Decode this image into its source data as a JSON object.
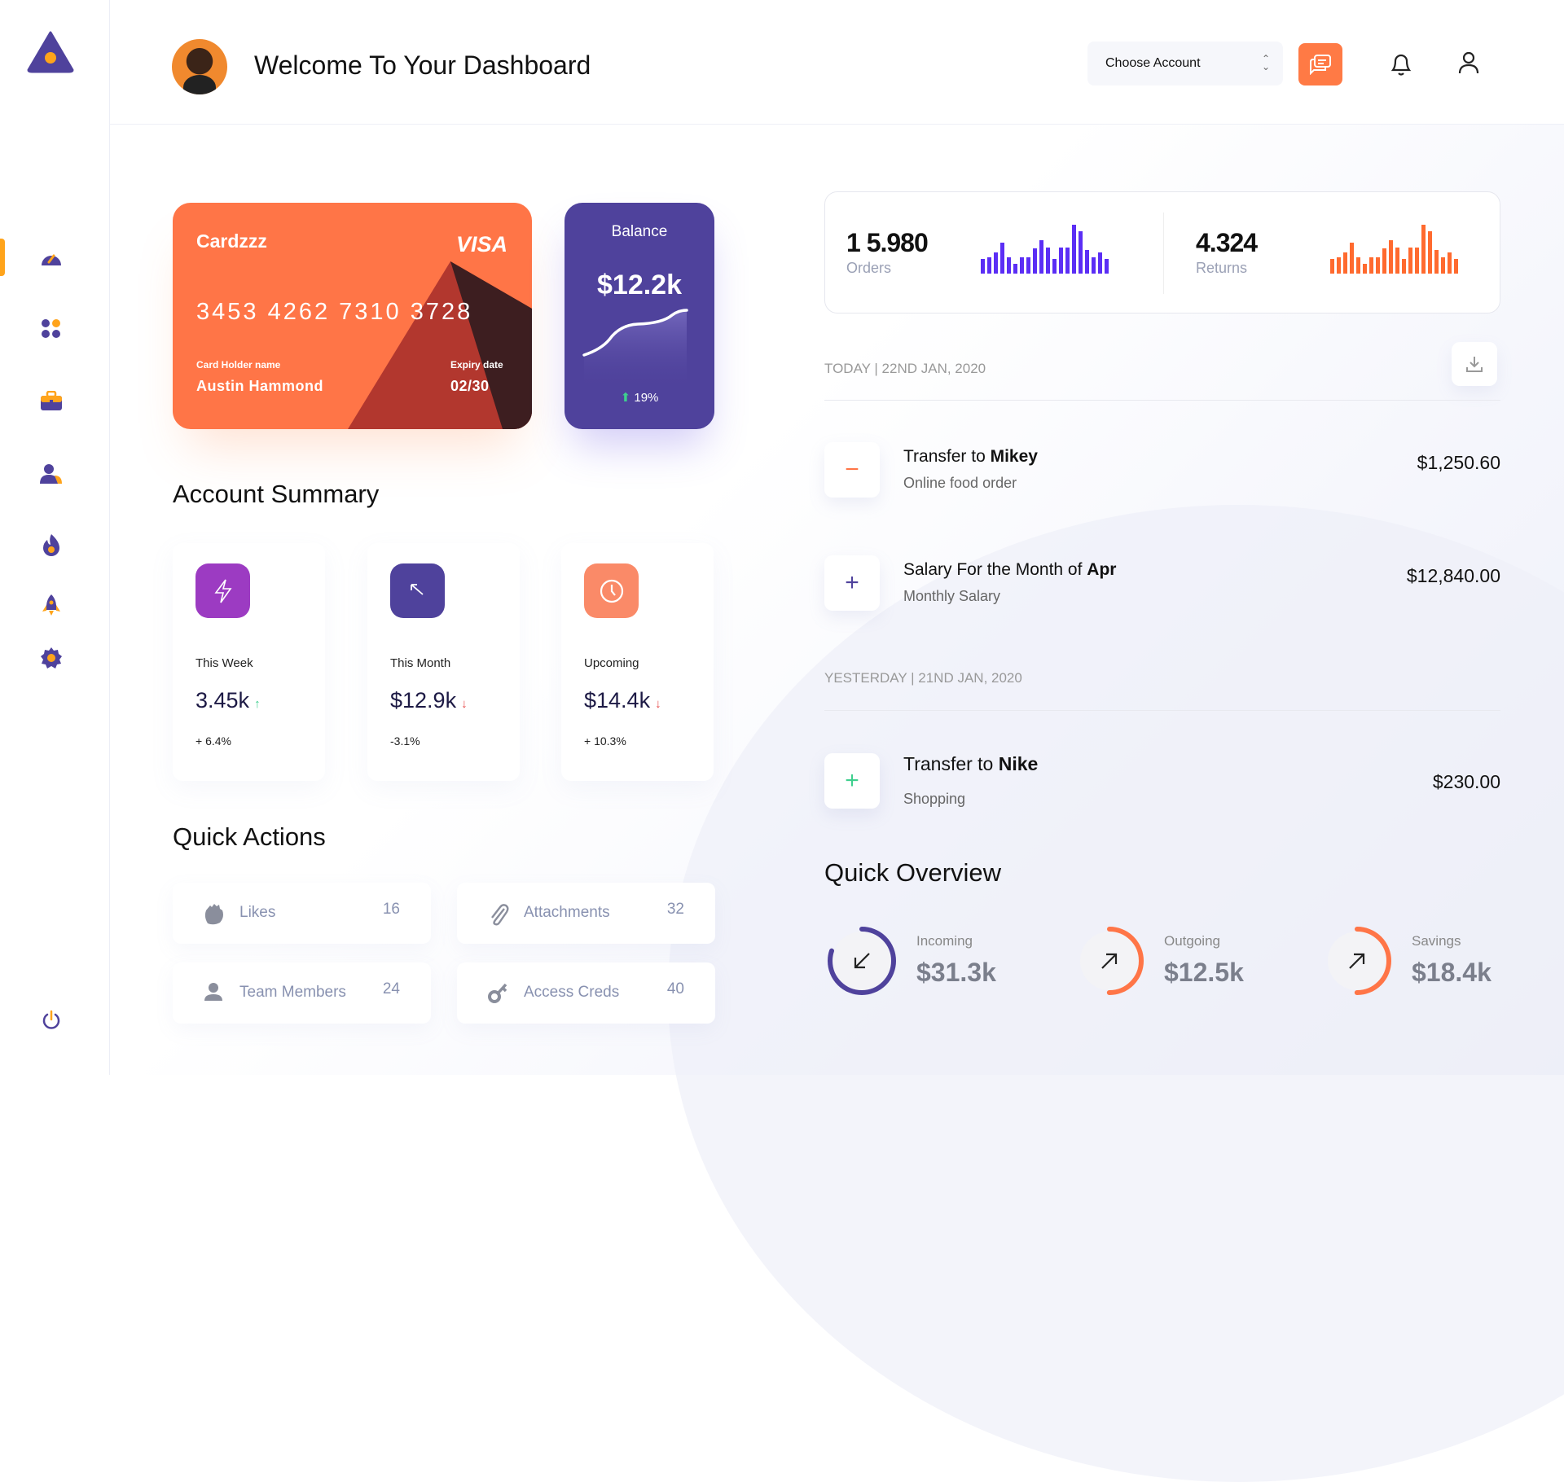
{
  "header": {
    "title": "Welcome To Your Dashboard",
    "account_select": "Choose Account"
  },
  "sidebar": {
    "items": [
      "dashboard",
      "apps",
      "portfolio",
      "users",
      "trending",
      "launch",
      "settings"
    ],
    "active": "dashboard",
    "logout": "power"
  },
  "colors": {
    "primary": "#4f429c",
    "accent": "#ff7547",
    "active": "#ffa41b",
    "orders_bar": "#5b2ef5",
    "returns_bar": "#ff6a2f"
  },
  "card": {
    "name": "Cardzzz",
    "brand": "VISA",
    "number": "3453 4262 7310 3728",
    "holder_label": "Card Holder name",
    "holder": "Austin Hammond",
    "expiry_label": "Expiry date",
    "expiry": "02/30"
  },
  "balance": {
    "title": "Balance",
    "value": "$12.2k",
    "change": "19%"
  },
  "account_summary": {
    "title": "Account Summary",
    "cards": [
      {
        "label": "This Week",
        "value": "3.45k",
        "trend": "up",
        "change": "+ 6.4%",
        "icon": "lightning-icon",
        "color": "#9c3bc2"
      },
      {
        "label": "This Month",
        "value": "$12.9k",
        "trend": "down",
        "change": "-3.1%",
        "icon": "arrow-up-left-icon",
        "color": "#4f429c"
      },
      {
        "label": "Upcoming",
        "value": "$14.4k",
        "trend": "down",
        "change": "+ 10.3%",
        "icon": "clock-icon",
        "color": "#fa8a68"
      }
    ]
  },
  "quick_actions": {
    "title": "Quick Actions",
    "items": [
      {
        "label": "Likes",
        "count": "16",
        "icon": "clap-icon"
      },
      {
        "label": "Attachments",
        "count": "32",
        "icon": "paperclip-icon"
      },
      {
        "label": "Team Members",
        "count": "24",
        "icon": "user-icon"
      },
      {
        "label": "Access Creds",
        "count": "40",
        "icon": "key-icon"
      }
    ]
  },
  "stats": {
    "orders": {
      "value": "1 5.980",
      "label": "Orders",
      "bars": [
        53,
        58,
        74,
        110,
        58,
        34,
        58,
        58,
        90,
        120,
        94,
        52,
        94,
        94,
        174,
        150,
        83,
        58,
        74,
        53
      ]
    },
    "returns": {
      "value": "4.324",
      "label": "Returns",
      "bars": [
        53,
        58,
        74,
        110,
        58,
        34,
        58,
        58,
        90,
        120,
        94,
        52,
        94,
        94,
        174,
        150,
        83,
        58,
        74,
        53
      ]
    }
  },
  "transactions": {
    "today_label": "TODAY | 22ND JAN, 2020",
    "yesterday_label": "YESTERDAY | 21ND JAN, 2020",
    "items": [
      {
        "prefix": "Transfer to ",
        "bold": "Mikey",
        "sub": "Online food order",
        "amount": "$1,250.60",
        "sign": "−",
        "color": "#ff7547"
      },
      {
        "prefix": "Salary For the Month of ",
        "bold": "Apr",
        "sub": "Monthly Salary",
        "amount": "$12,840.00",
        "sign": "+",
        "color": "#4f429c"
      },
      {
        "prefix": "Transfer to ",
        "bold": "Nike",
        "sub": "Shopping",
        "amount": "$230.00",
        "sign": "+",
        "color": "#3ecf8e"
      }
    ]
  },
  "overview": {
    "title": "Quick Overview",
    "items": [
      {
        "label": "Incoming",
        "value": "$31.3k",
        "progress": 0.8,
        "color": "#4f429c",
        "direction": "down-left"
      },
      {
        "label": "Outgoing",
        "value": "$12.5k",
        "progress": 0.5,
        "color": "#ff7547",
        "direction": "up-right"
      },
      {
        "label": "Savings",
        "value": "$18.4k",
        "progress": 0.5,
        "color": "#ff7547",
        "direction": "up-right"
      }
    ]
  }
}
